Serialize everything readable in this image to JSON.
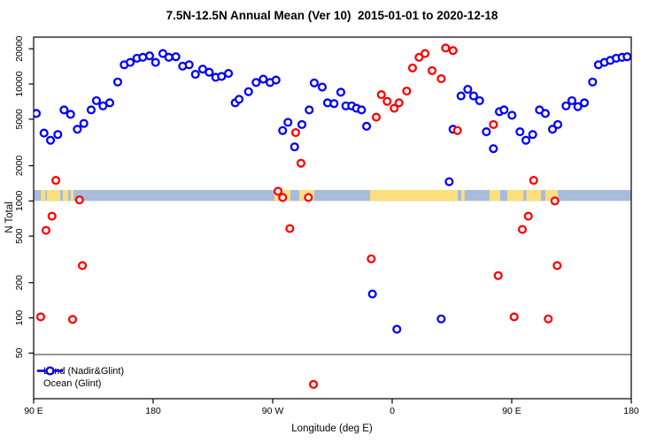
{
  "chart_data": {
    "type": "scatter",
    "title": "7.5N-12.5N Annual Mean (Ver 10)  2015-01-01 to 2020-12-18",
    "xlabel": "Longitude (deg E)",
    "ylabel": "N Total",
    "x_axis": {
      "range_deg": [
        90,
        540
      ],
      "ticks": [
        {
          "d": 90,
          "label": "90 E"
        },
        {
          "d": 180,
          "label": "180"
        },
        {
          "d": 270,
          "label": "90 W"
        },
        {
          "d": 360,
          "label": "0"
        },
        {
          "d": 450,
          "label": "90 E"
        },
        {
          "d": 540,
          "label": "180"
        }
      ]
    },
    "y_axis": {
      "scale": "log",
      "ticks": [
        {
          "n": 50,
          "label": "50"
        },
        {
          "n": 100,
          "label": "100"
        },
        {
          "n": 200,
          "label": "200"
        },
        {
          "n": 500,
          "label": "500"
        },
        {
          "n": 1000,
          "label": "1000"
        },
        {
          "n": 2000,
          "label": "2000"
        },
        {
          "n": 5000,
          "label": "5000"
        },
        {
          "n": 10000,
          "label": "10000"
        },
        {
          "n": 20000,
          "label": "20000"
        }
      ]
    },
    "reference_line_n": 50,
    "surface_strip": {
      "ocean_color": "#A7BCDB",
      "land_color": "#FBDF7D",
      "n_range": [
        1000,
        1240
      ],
      "land_segments_deg": [
        [
          95.5,
          98.9
        ],
        [
          100,
          110
        ],
        [
          112,
          116
        ],
        [
          117.8,
          120
        ],
        [
          271.3,
          283.3
        ],
        [
          290,
          301.3
        ],
        [
          343.3,
          409.3
        ],
        [
          412,
          414.5
        ],
        [
          433.3,
          441.3
        ],
        [
          446.7,
          458.7
        ],
        [
          461.1,
          472
        ],
        [
          475.3,
          484.7
        ]
      ]
    },
    "series": [
      {
        "name": "Ocean (Glint)",
        "color": "#0000FF",
        "points": [
          [
            92,
            5600
          ],
          [
            97.8,
            3800
          ],
          [
            102.7,
            3300
          ],
          [
            108.2,
            3700
          ],
          [
            112.9,
            6000
          ],
          [
            117.8,
            5500
          ],
          [
            122.9,
            4100
          ],
          [
            127.8,
            4600
          ],
          [
            133.3,
            6000
          ],
          [
            137.3,
            7200
          ],
          [
            142.2,
            6500
          ],
          [
            147.3,
            6900
          ],
          [
            153.3,
            10400
          ],
          [
            158.2,
            14600
          ],
          [
            162.7,
            15300
          ],
          [
            167.8,
            16600
          ],
          [
            172.2,
            16900
          ],
          [
            177.3,
            17400
          ],
          [
            181.8,
            15300
          ],
          [
            187.3,
            18200
          ],
          [
            191.8,
            16900
          ],
          [
            197.1,
            17100
          ],
          [
            202.2,
            14200
          ],
          [
            207.1,
            14600
          ],
          [
            211.8,
            12100
          ],
          [
            217.3,
            13400
          ],
          [
            222.2,
            12600
          ],
          [
            227.1,
            11400
          ],
          [
            231.5,
            11600
          ],
          [
            236.7,
            12300
          ],
          [
            241.8,
            6900
          ],
          [
            244.7,
            7400
          ],
          [
            251.8,
            8600
          ],
          [
            257.5,
            10300
          ],
          [
            262.9,
            11000
          ],
          [
            268,
            10300
          ],
          [
            272.5,
            10800
          ],
          [
            277.5,
            4000
          ],
          [
            281.5,
            4700
          ],
          [
            286.5,
            2900
          ],
          [
            292,
            4500
          ],
          [
            297.5,
            6000
          ],
          [
            301.3,
            10200
          ],
          [
            307.3,
            9400
          ],
          [
            311.3,
            6900
          ],
          [
            316.2,
            6800
          ],
          [
            321.3,
            8500
          ],
          [
            325.1,
            6500
          ],
          [
            329.5,
            6500
          ],
          [
            333.1,
            6200
          ],
          [
            336.9,
            6000
          ],
          [
            340.7,
            4350
          ],
          [
            345.1,
            160
          ],
          [
            363.5,
            80
          ],
          [
            396.9,
            98
          ],
          [
            402.9,
            1460
          ],
          [
            405.8,
            4100
          ],
          [
            411.8,
            7900
          ],
          [
            416.9,
            9000
          ],
          [
            421.3,
            7900
          ],
          [
            425.8,
            7200
          ],
          [
            430.9,
            3900
          ],
          [
            436.2,
            2800
          ],
          [
            440.7,
            5800
          ],
          [
            444.2,
            6000
          ],
          [
            450.2,
            5400
          ],
          [
            456.2,
            3900
          ],
          [
            460.7,
            3300
          ],
          [
            465.8,
            3700
          ],
          [
            470.9,
            6000
          ],
          [
            475.3,
            5600
          ],
          [
            480.7,
            4100
          ],
          [
            484.7,
            4500
          ],
          [
            490.9,
            6500
          ],
          [
            495.3,
            7200
          ],
          [
            499.8,
            6400
          ],
          [
            504.7,
            6900
          ],
          [
            510.9,
            10400
          ],
          [
            515.3,
            14600
          ],
          [
            519.8,
            15300
          ],
          [
            524.2,
            15900
          ],
          [
            528.7,
            16600
          ],
          [
            533.1,
            16900
          ],
          [
            536.9,
            17100
          ]
        ]
      },
      {
        "name": "Land (Nadir&Glint)",
        "color": "#FF0000",
        "points": [
          [
            106.7,
            1500
          ],
          [
            124.5,
            1020
          ],
          [
            103.8,
            740
          ],
          [
            99.3,
            560
          ],
          [
            126.7,
            280
          ],
          [
            95.3,
            102
          ],
          [
            119.3,
            97
          ],
          [
            287.3,
            3840
          ],
          [
            291.3,
            2100
          ],
          [
            274,
            1210
          ],
          [
            277.5,
            1070
          ],
          [
            296.9,
            1070
          ],
          [
            282.9,
            580
          ],
          [
            300.7,
            27
          ],
          [
            344.2,
            320
          ],
          [
            348,
            5200
          ],
          [
            351.8,
            8100
          ],
          [
            356.2,
            7100
          ],
          [
            361.5,
            6200
          ],
          [
            365.1,
            6900
          ],
          [
            370.9,
            8700
          ],
          [
            375.3,
            13700
          ],
          [
            380.2,
            16900
          ],
          [
            384.7,
            18200
          ],
          [
            390,
            13000
          ],
          [
            396.9,
            11100
          ],
          [
            400.2,
            20300
          ],
          [
            405.8,
            19300
          ],
          [
            409.1,
            4000
          ],
          [
            436.2,
            4500
          ],
          [
            439.8,
            230
          ],
          [
            451.8,
            102
          ],
          [
            458,
            570
          ],
          [
            462.5,
            740
          ],
          [
            466.5,
            1500
          ],
          [
            477.5,
            98
          ],
          [
            482.5,
            1000
          ],
          [
            484.2,
            280
          ]
        ]
      }
    ],
    "legend": {
      "position": "bottom-left",
      "entries": [
        "Land (Nadir&Glint)",
        "Ocean (Glint)"
      ]
    }
  }
}
